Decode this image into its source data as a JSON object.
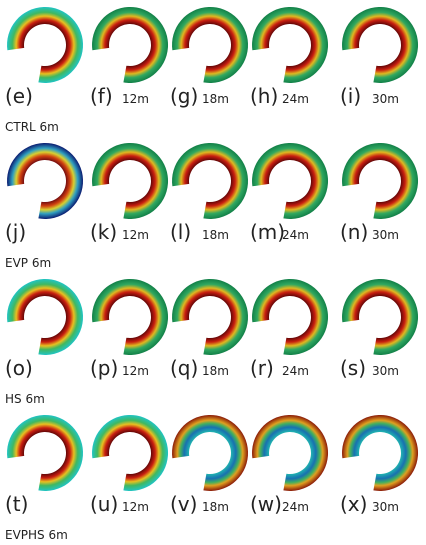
{
  "rows": [
    {
      "label": "CTRL 6m",
      "panels": [
        {
          "letter": "(e)"
        },
        {
          "letter": "(f)",
          "time": "12m"
        },
        {
          "letter": "(g)",
          "time": "18m"
        },
        {
          "letter": "(h)",
          "time": "24m"
        },
        {
          "letter": "(i)",
          "time": "30m"
        }
      ]
    },
    {
      "label": "EVP 6m",
      "panels": [
        {
          "letter": "(j)"
        },
        {
          "letter": "(k)",
          "time": "12m"
        },
        {
          "letter": "(l)",
          "time": "18m"
        },
        {
          "letter": "(m)",
          "time": "24m"
        },
        {
          "letter": "(n)",
          "time": "30m"
        }
      ]
    },
    {
      "label": "HS 6m",
      "panels": [
        {
          "letter": "(o)"
        },
        {
          "letter": "(p)",
          "time": "12m"
        },
        {
          "letter": "(q)",
          "time": "18m"
        },
        {
          "letter": "(r)",
          "time": "24m"
        },
        {
          "letter": "(s)",
          "time": "30m"
        }
      ]
    },
    {
      "label": "EVPHS 6m",
      "panels": [
        {
          "letter": "(t)"
        },
        {
          "letter": "(u)",
          "time": "12m"
        },
        {
          "letter": "(v)",
          "time": "18m"
        },
        {
          "letter": "(w)",
          "time": "24m"
        },
        {
          "letter": "(x)",
          "time": "30m"
        }
      ]
    }
  ]
}
